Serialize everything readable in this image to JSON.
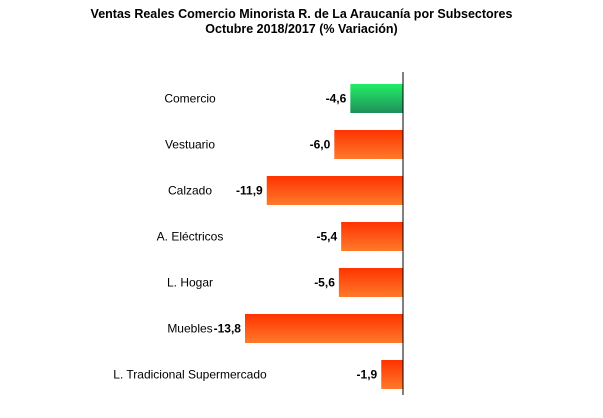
{
  "chart_data": {
    "type": "bar",
    "orientation": "horizontal",
    "title": "Ventas Reales Comercio Minorista R. de La Araucanía por Subsectores",
    "subtitle": "Octubre 2018/2017 (% Variación)",
    "categories": [
      "Comercio",
      "Vestuario",
      "Calzado",
      "A. Eléctricos",
      "L. Hogar",
      "Muebles",
      "L. Tradicional Supermercado"
    ],
    "values": [
      -4.6,
      -6.0,
      -11.9,
      -5.4,
      -5.6,
      -13.8,
      -1.9
    ],
    "value_labels": [
      "-4,6",
      "-6,0",
      "-11,9",
      "-5,4",
      "-5,6",
      "-13,8",
      "-1,9"
    ],
    "xlim": [
      -16,
      0
    ],
    "grid": false,
    "legend": "none",
    "colors": {
      "highlight_top": "#22ee66",
      "highlight_bottom": "#1f8f5a",
      "bar_top": "#ff3300",
      "bar_bottom": "#ff7a2a",
      "axis": "#000000"
    },
    "highlight_index": 0
  }
}
